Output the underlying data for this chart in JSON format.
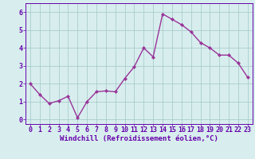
{
  "x": [
    0,
    1,
    2,
    3,
    4,
    5,
    6,
    7,
    8,
    9,
    10,
    11,
    12,
    13,
    14,
    15,
    16,
    17,
    18,
    19,
    20,
    21,
    22,
    23
  ],
  "y": [
    2.0,
    1.4,
    0.9,
    1.05,
    1.3,
    0.1,
    1.0,
    1.55,
    1.6,
    1.55,
    2.3,
    2.95,
    4.0,
    3.5,
    5.9,
    5.6,
    5.3,
    4.9,
    4.3,
    4.0,
    3.6,
    3.6,
    3.15,
    2.35
  ],
  "line_color": "#993399",
  "marker": "D",
  "marker_size": 2.2,
  "linewidth": 1.0,
  "xlabel": "Windchill (Refroidissement éolien,°C)",
  "xlim": [
    -0.5,
    23.5
  ],
  "ylim": [
    -0.25,
    6.5
  ],
  "yticks": [
    0,
    1,
    2,
    3,
    4,
    5,
    6
  ],
  "xticks": [
    0,
    1,
    2,
    3,
    4,
    5,
    6,
    7,
    8,
    9,
    10,
    11,
    12,
    13,
    14,
    15,
    16,
    17,
    18,
    19,
    20,
    21,
    22,
    23
  ],
  "grid_color": "#aacccc",
  "bg_color": "#d8eeee",
  "xlabel_fontsize": 6.5,
  "tick_fontsize": 6.0,
  "xlabel_color": "#6600aa",
  "tick_color": "#6600aa",
  "spine_color": "#6600aa"
}
